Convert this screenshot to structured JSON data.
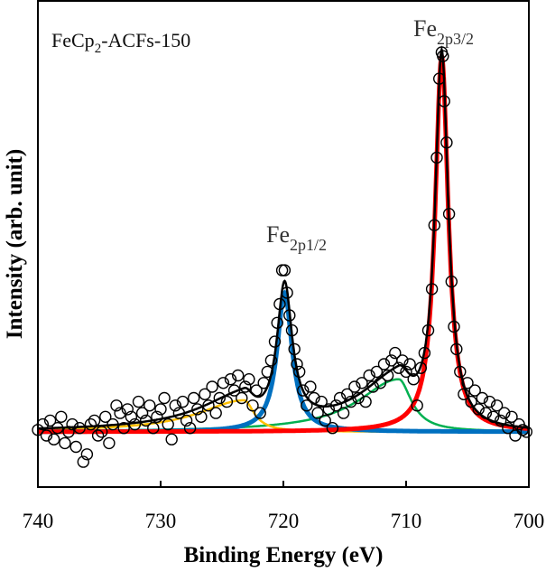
{
  "chart_data": {
    "type": "scatter",
    "title": "",
    "annotation": {
      "main": "FeCp",
      "sub": "2",
      "rest": "-ACFs-150"
    },
    "peak_labels": [
      {
        "main": "Fe",
        "sub": "2p3/2",
        "at": [
          707.1,
          101
        ]
      },
      {
        "main": "Fe",
        "sub": "2p1/2",
        "at": [
          719.9,
          43
        ]
      }
    ],
    "xlabel": "Binding Energy (eV)",
    "ylabel": "Intensity (arb. unit)",
    "xlim": [
      740,
      700
    ],
    "ylim": [
      -14.7,
      114.7
    ],
    "x_reversed": true,
    "xticks": [
      740,
      730,
      720,
      710,
      700
    ],
    "yticks": [],
    "grid": false,
    "legend": "none",
    "fit_components": [
      {
        "color": "#00b050",
        "center": 710.6,
        "height": 14,
        "hwhm_high_be": 4.0,
        "hwhm_low_be": 1.25
      },
      {
        "color": "#ffc000",
        "center": 723.2,
        "height": 8.4,
        "hwhm_high_be": 4.5,
        "hwhm_low_be": 1.0
      },
      {
        "color": "#0070c0",
        "center": 719.9,
        "height": 37,
        "hwhm_high_be": 0.75,
        "hwhm_low_be": 0.75
      },
      {
        "color": "#ff0000",
        "center": 707.1,
        "height": 100,
        "hwhm_high_be": 0.65,
        "hwhm_low_be": 0.65
      }
    ],
    "envelope_color": "#000000",
    "points": [
      [
        740,
        0.5
      ],
      [
        739.6,
        2
      ],
      [
        739.3,
        -1
      ],
      [
        739,
        3
      ],
      [
        738.7,
        -2
      ],
      [
        738.4,
        1
      ],
      [
        738.1,
        4
      ],
      [
        737.8,
        -3
      ],
      [
        737.5,
        0
      ],
      [
        737.2,
        2
      ],
      [
        736.9,
        -4
      ],
      [
        736.6,
        1
      ],
      [
        736.3,
        -8
      ],
      [
        736,
        -6
      ],
      [
        735.7,
        2
      ],
      [
        735.4,
        3
      ],
      [
        735.1,
        -1
      ],
      [
        734.8,
        0
      ],
      [
        734.5,
        4
      ],
      [
        734.2,
        -3
      ],
      [
        733.9,
        2
      ],
      [
        733.6,
        7
      ],
      [
        733.3,
        5
      ],
      [
        733,
        1
      ],
      [
        732.7,
        6
      ],
      [
        732.4,
        4
      ],
      [
        732.1,
        2
      ],
      [
        731.8,
        8
      ],
      [
        731.5,
        5
      ],
      [
        731.2,
        3
      ],
      [
        730.9,
        7
      ],
      [
        730.6,
        1
      ],
      [
        730.3,
        4
      ],
      [
        730,
        6
      ],
      [
        729.7,
        9
      ],
      [
        729.4,
        2
      ],
      [
        729.1,
        -2
      ],
      [
        728.8,
        7
      ],
      [
        728.5,
        5
      ],
      [
        728.2,
        8
      ],
      [
        727.9,
        3
      ],
      [
        727.6,
        1
      ],
      [
        727.3,
        9
      ],
      [
        727,
        6
      ],
      [
        726.7,
        4
      ],
      [
        726.4,
        10
      ],
      [
        726.1,
        7
      ],
      [
        725.8,
        12
      ],
      [
        725.5,
        5
      ],
      [
        725.2,
        9
      ],
      [
        724.9,
        13
      ],
      [
        724.6,
        8
      ],
      [
        724.3,
        14
      ],
      [
        724,
        11
      ],
      [
        723.7,
        15
      ],
      [
        723.4,
        9
      ],
      [
        723.1,
        12
      ],
      [
        722.8,
        14
      ],
      [
        722.5,
        7
      ],
      [
        722.2,
        11
      ],
      [
        721.9,
        5
      ],
      [
        721.6,
        13
      ],
      [
        721.3,
        16
      ],
      [
        721,
        19
      ],
      [
        720.7,
        24
      ],
      [
        720.5,
        29
      ],
      [
        720.3,
        34
      ],
      [
        720.1,
        43
      ],
      [
        719.9,
        43
      ],
      [
        719.7,
        37
      ],
      [
        719.5,
        31
      ],
      [
        719.3,
        27
      ],
      [
        719.1,
        22
      ],
      [
        718.9,
        18
      ],
      [
        718.7,
        16
      ],
      [
        718.4,
        11
      ],
      [
        718.1,
        7
      ],
      [
        717.8,
        12
      ],
      [
        717.5,
        9
      ],
      [
        717.2,
        5
      ],
      [
        716.9,
        8
      ],
      [
        716.6,
        3
      ],
      [
        716.3,
        6
      ],
      [
        716,
        1
      ],
      [
        715.7,
        7
      ],
      [
        715.4,
        9
      ],
      [
        715.1,
        5
      ],
      [
        714.8,
        10
      ],
      [
        714.5,
        8
      ],
      [
        714.2,
        12
      ],
      [
        713.9,
        9
      ],
      [
        713.6,
        13
      ],
      [
        713.3,
        8
      ],
      [
        713,
        15
      ],
      [
        712.7,
        12
      ],
      [
        712.4,
        16
      ],
      [
        712.1,
        13
      ],
      [
        711.8,
        18
      ],
      [
        711.5,
        15
      ],
      [
        711.2,
        19
      ],
      [
        710.9,
        21
      ],
      [
        710.6,
        17
      ],
      [
        710.3,
        19
      ],
      [
        710,
        16
      ],
      [
        709.7,
        18
      ],
      [
        709.4,
        14
      ],
      [
        709.1,
        7
      ],
      [
        708.8,
        17
      ],
      [
        708.5,
        21
      ],
      [
        708.2,
        27
      ],
      [
        707.9,
        38
      ],
      [
        707.7,
        55
      ],
      [
        707.5,
        73
      ],
      [
        707.3,
        94
      ],
      [
        707.1,
        101
      ],
      [
        707,
        100
      ],
      [
        706.9,
        88
      ],
      [
        706.7,
        77
      ],
      [
        706.5,
        58
      ],
      [
        706.3,
        40
      ],
      [
        706.1,
        28
      ],
      [
        705.9,
        22
      ],
      [
        705.6,
        16
      ],
      [
        705.3,
        10
      ],
      [
        705,
        13
      ],
      [
        704.7,
        8
      ],
      [
        704.4,
        11
      ],
      [
        704.1,
        6
      ],
      [
        703.8,
        9
      ],
      [
        703.5,
        5
      ],
      [
        703.2,
        8
      ],
      [
        702.9,
        4
      ],
      [
        702.6,
        7
      ],
      [
        702.3,
        3
      ],
      [
        702,
        5
      ],
      [
        701.7,
        1
      ],
      [
        701.4,
        4
      ],
      [
        701.1,
        -1
      ],
      [
        700.8,
        2
      ],
      [
        700.5,
        0.5
      ],
      [
        700.2,
        0
      ]
    ]
  }
}
